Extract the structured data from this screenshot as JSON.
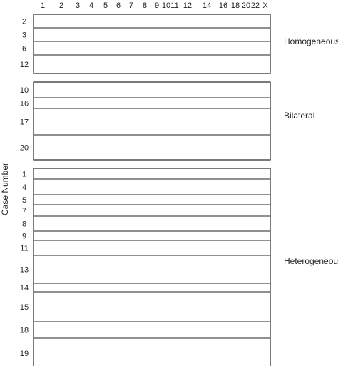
{
  "chart_data": {
    "type": "heatmap",
    "title": "",
    "ylabel": "Case Number",
    "columns": [
      "1",
      "2",
      "3",
      "4",
      "5",
      "6",
      "7",
      "8",
      "9",
      "10",
      "11",
      "12",
      "14",
      "16",
      "18",
      "20",
      "22",
      "X"
    ],
    "legend": {
      "gain": "#b0191e",
      "loss": "#2b2f8c",
      "loh_or_other": "#b3b3b3"
    },
    "groups": [
      {
        "name": "Homogeneous",
        "cases": [
          {
            "case": "2",
            "segments": [
              {
                "col": "11",
                "state": "other"
              }
            ]
          },
          {
            "case": "3",
            "segments": [
              {
                "col": "12",
                "state": "gain"
              },
              {
                "col": "20",
                "state": "gain"
              }
            ]
          },
          {
            "case": "6",
            "segments": [
              {
                "col": "12",
                "state": "gain"
              }
            ]
          },
          {
            "case": "12",
            "segments": []
          }
        ]
      },
      {
        "name": "Bilateral",
        "cases": [
          {
            "case": "10",
            "segments": [
              {
                "col": "1",
                "state": "gain"
              },
              {
                "col": "2",
                "state": "other"
              },
              {
                "col": "5",
                "state": "other"
              },
              {
                "col": "7",
                "state": "loss"
              },
              {
                "col": "9",
                "state": "gain"
              },
              {
                "col": "12",
                "state": "gain"
              },
              {
                "col": "16",
                "state": "loss"
              },
              {
                "col": "20",
                "state": "gain"
              },
              {
                "col": "X",
                "state": "gain"
              }
            ]
          },
          {
            "case": "16",
            "segments": [
              {
                "col": "1",
                "state": "gain"
              }
            ]
          },
          {
            "case": "17",
            "segments": [
              {
                "col": "7",
                "state": "gain"
              },
              {
                "col": "8",
                "state": "gain"
              },
              {
                "col": "12",
                "state": "gain"
              },
              {
                "col": "16",
                "state": "gain"
              },
              {
                "col": "X",
                "state": "gain"
              }
            ]
          },
          {
            "case": "20",
            "segments": [
              {
                "col": "1",
                "state": "gain"
              },
              {
                "col": "11",
                "state": "other"
              }
            ]
          }
        ]
      },
      {
        "name": "Heterogeneous",
        "cases": [
          {
            "case": "1",
            "segments": [
              {
                "col": "1",
                "state": "gain"
              },
              {
                "col": "4",
                "state": "other"
              },
              {
                "col": "7",
                "state": "gain"
              },
              {
                "col": "8",
                "state": "gain"
              },
              {
                "col": "12",
                "state": "gain"
              },
              {
                "col": "14",
                "state": "gain"
              }
            ]
          },
          {
            "case": "4",
            "segments": [
              {
                "col": "7",
                "state": "loss"
              },
              {
                "col": "7",
                "state": "gain"
              },
              {
                "col": "8",
                "state": "gain"
              },
              {
                "col": "12",
                "state": "gain"
              }
            ]
          },
          {
            "case": "5",
            "segments": [
              {
                "col": "7",
                "state": "gain"
              },
              {
                "col": "8",
                "state": "gain"
              },
              {
                "col": "20",
                "state": "gain"
              }
            ]
          },
          {
            "case": "7",
            "segments": [
              {
                "col": "10",
                "state": "other"
              }
            ]
          },
          {
            "case": "8",
            "segments": [
              {
                "col": "2",
                "state": "other"
              },
              {
                "col": "11",
                "state": "other"
              }
            ]
          },
          {
            "case": "9",
            "segments": [
              {
                "col": "1",
                "state": "gain"
              }
            ]
          },
          {
            "case": "11",
            "segments": [
              {
                "col": "1",
                "state": "gain"
              },
              {
                "col": "2",
                "state": "gain"
              },
              {
                "col": "7",
                "state": "gain"
              },
              {
                "col": "8",
                "state": "gain"
              },
              {
                "col": "9",
                "state": "gain"
              },
              {
                "col": "11",
                "state": "other"
              },
              {
                "col": "12",
                "state": "gain"
              },
              {
                "col": "16",
                "state": "gain"
              },
              {
                "col": "X",
                "state": "loss"
              }
            ]
          },
          {
            "case": "13",
            "segments": [
              {
                "col": "1",
                "state": "gain"
              },
              {
                "col": "2",
                "state": "gain"
              },
              {
                "col": "7",
                "state": "gain"
              },
              {
                "col": "8",
                "state": "gain"
              },
              {
                "col": "9",
                "state": "gain"
              },
              {
                "col": "11",
                "state": "gain"
              },
              {
                "col": "12",
                "state": "gain"
              },
              {
                "col": "16",
                "state": "loss"
              }
            ]
          },
          {
            "case": "14",
            "segments": [
              {
                "col": "11",
                "state": "other"
              }
            ]
          },
          {
            "case": "15",
            "segments": [
              {
                "col": "1",
                "state": "gain"
              },
              {
                "col": "2",
                "state": "gain"
              },
              {
                "col": "6",
                "state": "gain"
              },
              {
                "col": "7",
                "state": "gain"
              },
              {
                "col": "8",
                "state": "gain"
              },
              {
                "col": "9",
                "state": "gain"
              },
              {
                "col": "11",
                "state": "other"
              },
              {
                "col": "12",
                "state": "gain"
              },
              {
                "col": "20",
                "state": "other"
              }
            ]
          },
          {
            "case": "18",
            "segments": [
              {
                "col": "1",
                "state": "loss"
              },
              {
                "col": "2",
                "state": "loss"
              },
              {
                "col": "5",
                "state": "loss"
              },
              {
                "col": "10",
                "state": "loss"
              },
              {
                "col": "12",
                "state": "loss"
              },
              {
                "col": "14",
                "state": "loss"
              },
              {
                "col": "16",
                "state": "loss"
              },
              {
                "col": "18",
                "state": "loss"
              },
              {
                "col": "X",
                "state": "loss"
              }
            ]
          },
          {
            "case": "19",
            "segments": [
              {
                "col": "1",
                "state": "gain"
              },
              {
                "col": "6",
                "state": "gain"
              },
              {
                "col": "8",
                "state": "gain"
              },
              {
                "col": "12",
                "state": "gain"
              },
              {
                "col": "14",
                "state": "gain"
              },
              {
                "col": "16",
                "state": "loss"
              },
              {
                "col": "20",
                "state": "gain"
              },
              {
                "col": "X",
                "state": "gain"
              }
            ]
          }
        ]
      }
    ]
  }
}
